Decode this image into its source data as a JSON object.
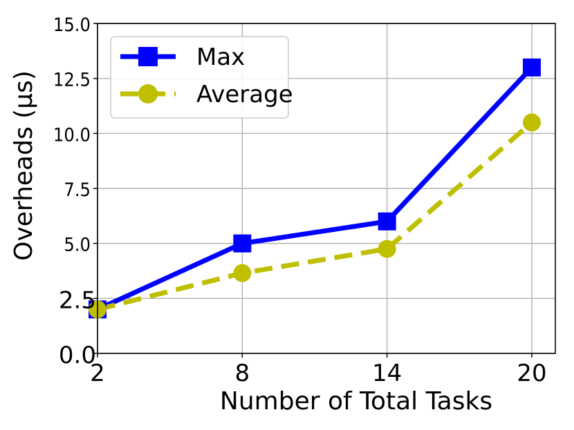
{
  "chart_data": {
    "type": "line",
    "xlabel": "Number of Total Tasks",
    "ylabel": "Overheads (μs)",
    "x": [
      2,
      8,
      14,
      20
    ],
    "xticks": [
      "2",
      "8",
      "14",
      "20"
    ],
    "xlim": [
      2,
      20
    ],
    "yticks": [
      "0.0",
      "2.5",
      "5.0",
      "7.5",
      "10.0",
      "12.5",
      "15.0"
    ],
    "ytick_values": [
      0,
      2.5,
      5,
      7.5,
      10,
      12.5,
      15
    ],
    "ylim": [
      0,
      15
    ],
    "grid": true,
    "legend_position": "top-left",
    "series": [
      {
        "name": "Max",
        "values": [
          2.0,
          5.0,
          6.0,
          13.0
        ],
        "color": "#0000ff",
        "marker": "square",
        "line_style": "solid"
      },
      {
        "name": "Average",
        "values": [
          2.0,
          3.65,
          4.75,
          10.5
        ],
        "color": "#bfbf00",
        "marker": "circle",
        "line_style": "dashed"
      }
    ]
  }
}
